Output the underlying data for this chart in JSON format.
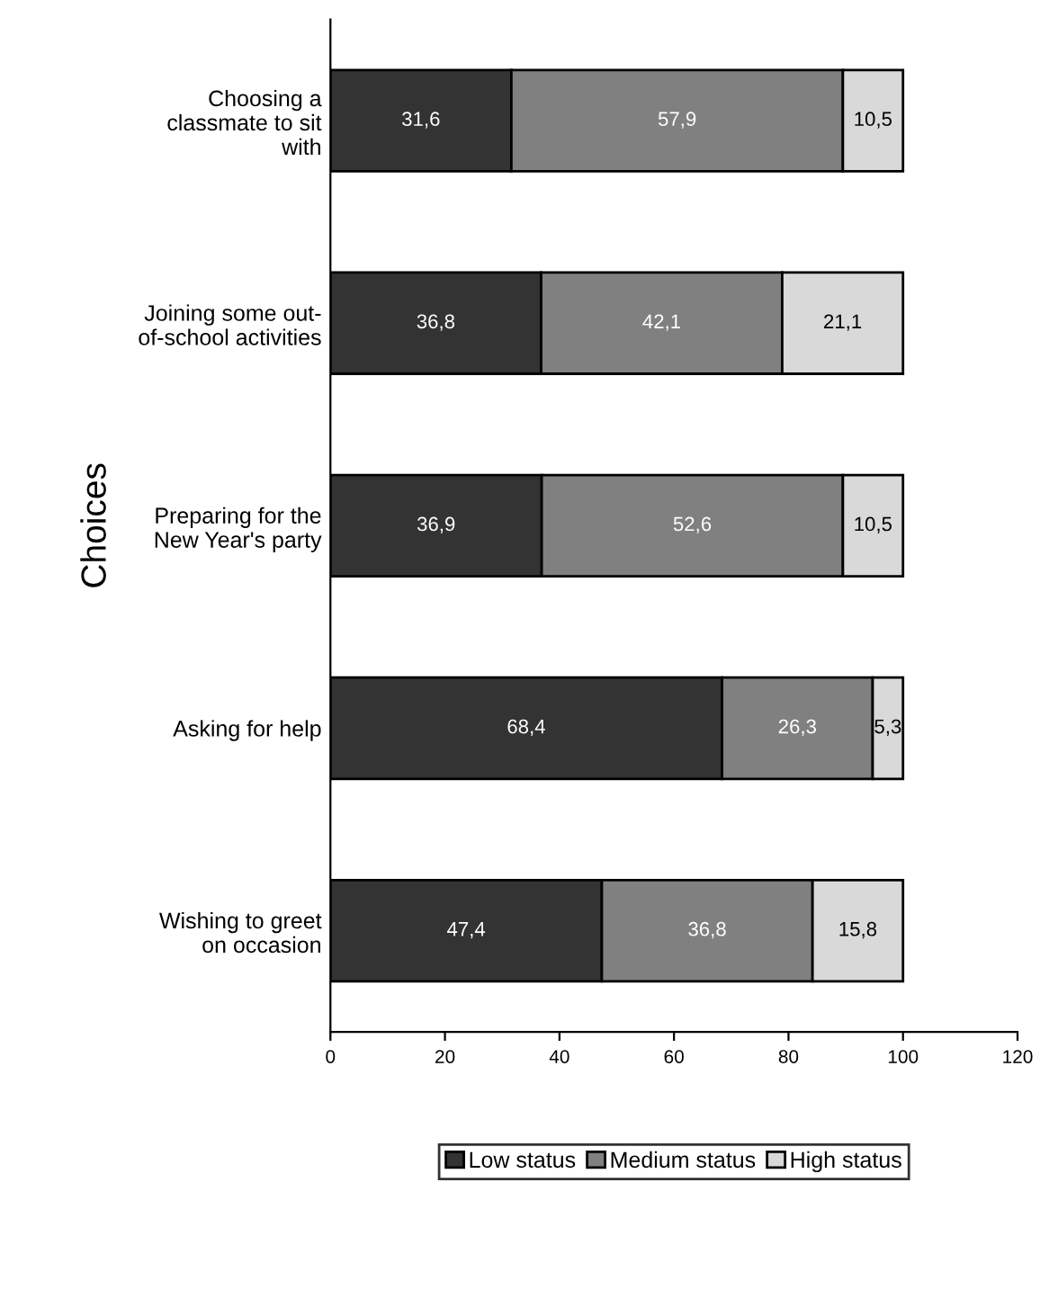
{
  "chart_data": {
    "type": "bar",
    "orientation": "horizontal",
    "stacked": true,
    "ylabel": "Choices",
    "categories": [
      "Choosing a\nclassmate to sit\nwith",
      "Joining some out-\nof-school activities",
      "Preparing for the\nNew Year's party",
      "Asking for help",
      "Wishing to greet\non occasion"
    ],
    "series": [
      {
        "name": "Low status",
        "color": "#333333",
        "values": [
          31.6,
          36.8,
          36.9,
          68.4,
          47.4
        ],
        "value_labels": [
          "31,6",
          "36,8",
          "36,9",
          "68,4",
          "47,4"
        ]
      },
      {
        "name": "Medium status",
        "color": "#808080",
        "values": [
          57.9,
          42.1,
          52.6,
          26.3,
          36.8
        ],
        "value_labels": [
          "57,9",
          "42,1",
          "52,6",
          "26,3",
          "36,8"
        ]
      },
      {
        "name": "High status",
        "color": "#d9d9d9",
        "values": [
          10.5,
          21.1,
          10.5,
          5.3,
          15.8
        ],
        "value_labels": [
          "10,5",
          "21,1",
          "10,5",
          "5,3",
          "15,8"
        ]
      }
    ],
    "xlim": [
      0,
      120
    ],
    "xticks": [
      0,
      20,
      40,
      60,
      80,
      100,
      120
    ],
    "grid": false,
    "legend": "bottom"
  }
}
